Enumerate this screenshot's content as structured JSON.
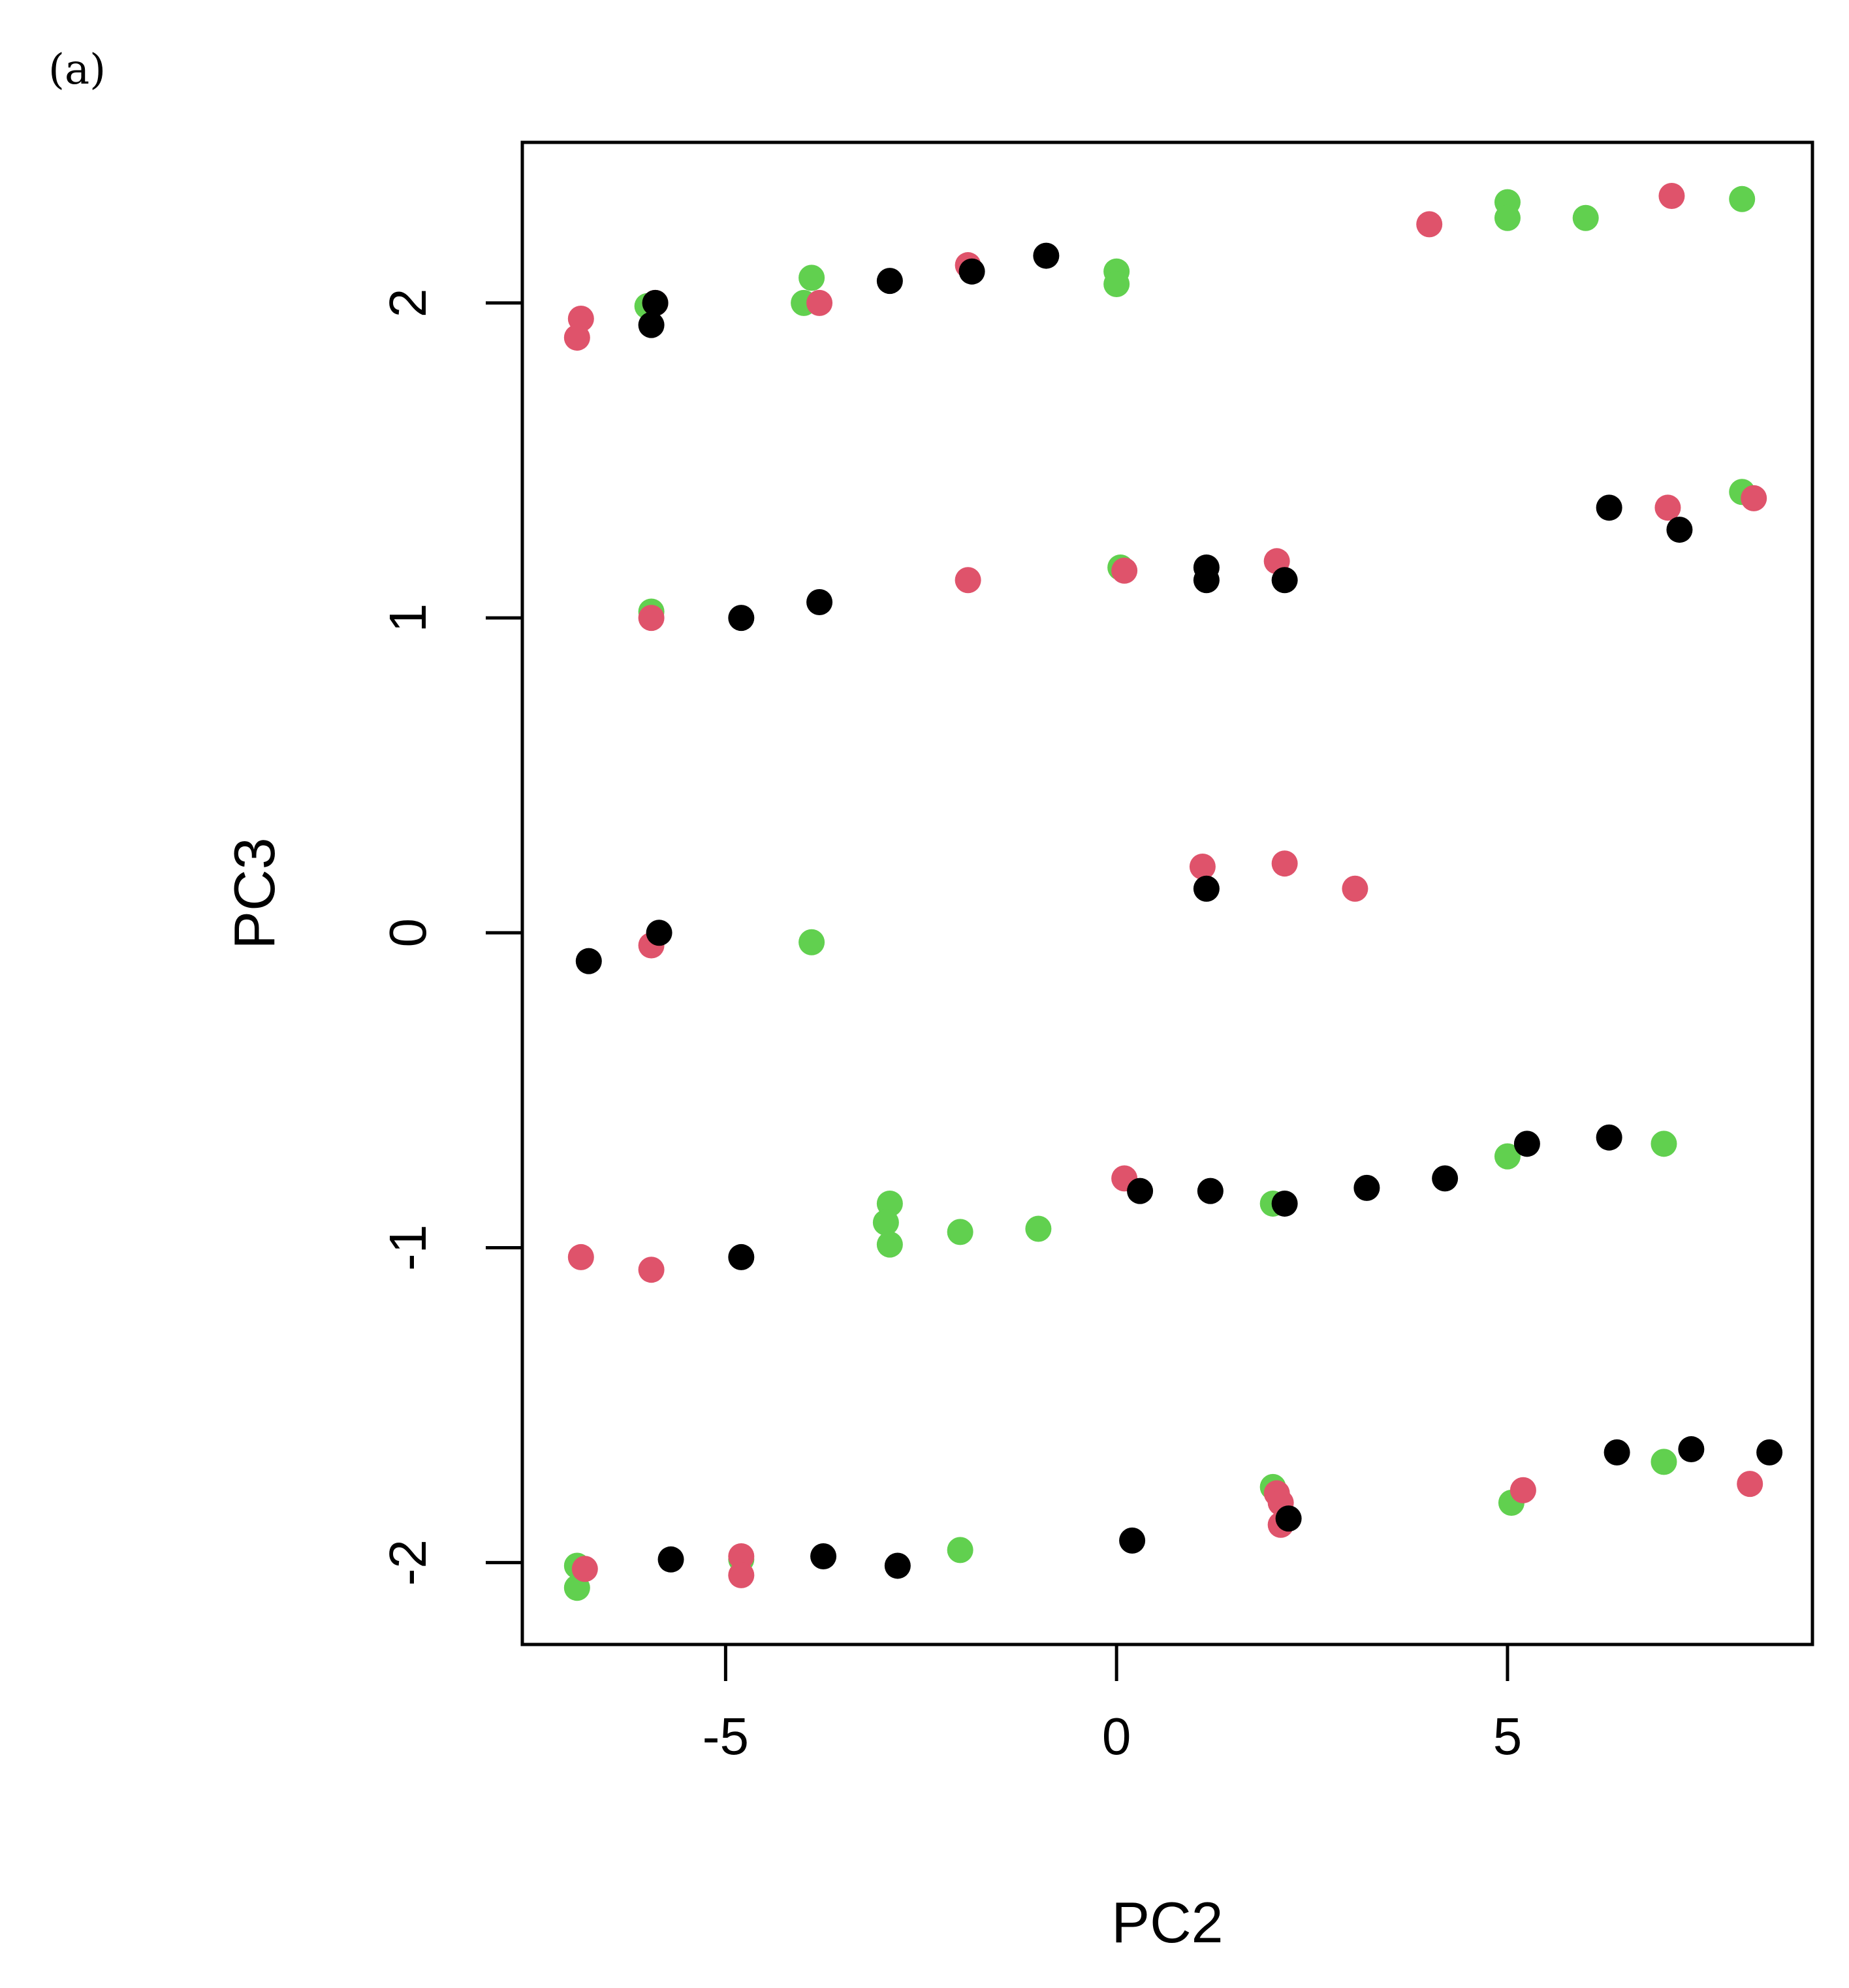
{
  "panel_label": "(a)",
  "chart_data": {
    "type": "scatter",
    "xlabel": "PC2",
    "ylabel": "PC3",
    "xlim": [
      -7.6,
      8.9
    ],
    "ylim": [
      -2.26,
      2.51
    ],
    "x_ticks": [
      -5,
      0,
      5
    ],
    "x_tick_labels": [
      "-5",
      "0",
      "5"
    ],
    "y_ticks": [
      -2,
      -1,
      0,
      1,
      2
    ],
    "y_tick_labels": [
      "-2",
      "-1",
      "0",
      "1",
      "2"
    ],
    "grid": false,
    "colors": {
      "black": "#000000",
      "red": "#DF536B",
      "green": "#61D04F"
    },
    "series": [
      {
        "color": "#61D04F",
        "points": [
          [
            -6.0,
            1.99
          ],
          [
            -3.9,
            2.08
          ],
          [
            -4.0,
            2.0
          ],
          [
            0.0,
            2.1
          ],
          [
            0.0,
            2.06
          ],
          [
            5.0,
            2.32
          ],
          [
            5.0,
            2.27
          ],
          [
            6.0,
            2.27
          ],
          [
            8.0,
            2.33
          ],
          [
            -5.95,
            1.02
          ],
          [
            0.05,
            1.16
          ],
          [
            8.0,
            1.4
          ],
          [
            -3.9,
            -0.03
          ],
          [
            -2.9,
            -0.86
          ],
          [
            -2.95,
            -0.92
          ],
          [
            -2.9,
            -0.99
          ],
          [
            -2.0,
            -0.95
          ],
          [
            -1.0,
            -0.94
          ],
          [
            2.0,
            -0.86
          ],
          [
            5.0,
            -0.71
          ],
          [
            7.0,
            -0.67
          ],
          [
            -6.9,
            -2.01
          ],
          [
            -6.9,
            -2.08
          ],
          [
            -4.8,
            -1.99
          ],
          [
            -2.0,
            -1.96
          ],
          [
            2.0,
            -1.76
          ],
          [
            5.05,
            -1.81
          ],
          [
            7.0,
            -1.68
          ]
        ]
      },
      {
        "color": "#DF536B",
        "points": [
          [
            -6.85,
            1.95
          ],
          [
            -6.9,
            1.89
          ],
          [
            -5.9,
            2.0
          ],
          [
            -3.8,
            2.0
          ],
          [
            -1.9,
            2.12
          ],
          [
            4.0,
            2.25
          ],
          [
            7.1,
            2.34
          ],
          [
            -5.95,
            1.0
          ],
          [
            -1.9,
            1.12
          ],
          [
            0.1,
            1.15
          ],
          [
            2.05,
            1.18
          ],
          [
            7.05,
            1.35
          ],
          [
            8.15,
            1.38
          ],
          [
            1.1,
            0.21
          ],
          [
            2.15,
            0.22
          ],
          [
            3.05,
            0.14
          ],
          [
            -5.95,
            -0.04
          ],
          [
            -6.85,
            -1.03
          ],
          [
            -5.95,
            -1.07
          ],
          [
            0.1,
            -0.78
          ],
          [
            -6.8,
            -2.02
          ],
          [
            -4.8,
            -1.98
          ],
          [
            -4.8,
            -2.04
          ],
          [
            2.05,
            -1.78
          ],
          [
            2.1,
            -1.81
          ],
          [
            2.1,
            -1.88
          ],
          [
            5.2,
            -1.77
          ],
          [
            8.1,
            -1.75
          ]
        ]
      },
      {
        "color": "#000000",
        "points": [
          [
            -5.9,
            2.0
          ],
          [
            -5.95,
            1.93
          ],
          [
            -2.9,
            2.07
          ],
          [
            -1.85,
            2.1
          ],
          [
            -0.9,
            2.15
          ],
          [
            -4.8,
            1.0
          ],
          [
            -3.8,
            1.05
          ],
          [
            1.15,
            1.16
          ],
          [
            1.15,
            1.12
          ],
          [
            2.15,
            1.12
          ],
          [
            6.3,
            1.35
          ],
          [
            7.2,
            1.28
          ],
          [
            -6.75,
            -0.09
          ],
          [
            -5.85,
            0.0
          ],
          [
            1.15,
            0.14
          ],
          [
            -4.8,
            -1.03
          ],
          [
            0.3,
            -0.82
          ],
          [
            1.2,
            -0.82
          ],
          [
            2.15,
            -0.86
          ],
          [
            3.2,
            -0.81
          ],
          [
            4.2,
            -0.78
          ],
          [
            5.25,
            -0.67
          ],
          [
            6.3,
            -0.65
          ],
          [
            -5.7,
            -1.99
          ],
          [
            -3.75,
            -1.98
          ],
          [
            -2.8,
            -2.01
          ],
          [
            0.2,
            -1.93
          ],
          [
            2.2,
            -1.86
          ],
          [
            6.4,
            -1.65
          ],
          [
            7.35,
            -1.64
          ],
          [
            8.35,
            -1.65
          ]
        ]
      }
    ]
  }
}
